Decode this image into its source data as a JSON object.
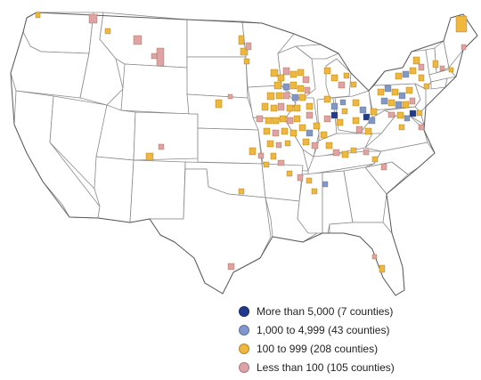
{
  "legend": [
    {
      "label": "More than 5,000 (7 counties)",
      "color": "#1f3a8f"
    },
    {
      "label": "1,000 to 4,999 (43 counties)",
      "color": "#7f97cc"
    },
    {
      "label": "100 to 999 (208 counties)",
      "color": "#f0b73e"
    },
    {
      "label": "Less than 100 (105 counties)",
      "color": "#e0a2a6"
    }
  ]
}
